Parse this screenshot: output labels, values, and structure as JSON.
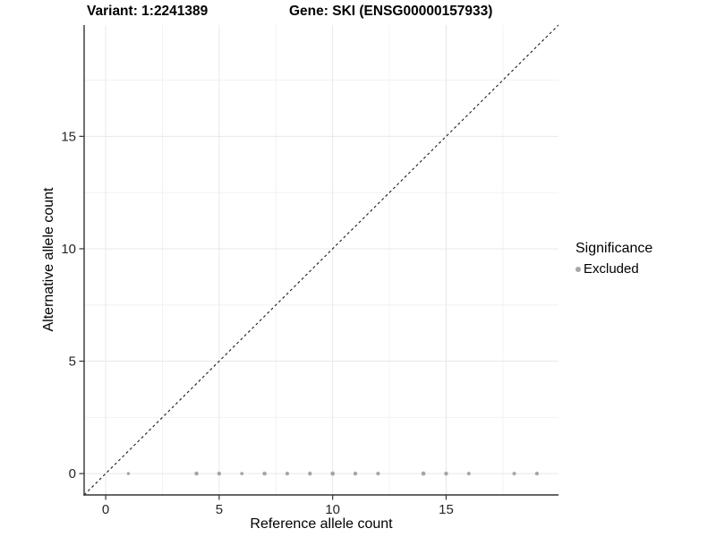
{
  "titles": {
    "variant": "Variant: 1:2241389",
    "gene": "Gene: SKI (ENSG00000157933)"
  },
  "chart_data": {
    "type": "scatter",
    "title": "Variant: 1:2241389   Gene: SKI (ENSG00000157933)",
    "xlabel": "Reference allele count",
    "ylabel": "Alternative allele count",
    "xlim": [
      -0.95,
      19.95
    ],
    "ylim": [
      -0.95,
      19.95
    ],
    "x_ticks": [
      0,
      5,
      10,
      15
    ],
    "y_ticks": [
      0,
      5,
      10,
      15
    ],
    "x_minor_ticks": [
      2.5,
      7.5,
      12.5,
      17.5
    ],
    "y_minor_ticks": [
      2.5,
      7.5,
      12.5,
      17.5
    ],
    "grid": true,
    "legend_position": "right",
    "reference_line": {
      "kind": "identity-y-equals-x",
      "style": "dashed",
      "color": "#1a1a1a"
    },
    "series": [
      {
        "name": "Excluded",
        "color": "#a6a6a6",
        "points": [
          {
            "x": 1,
            "y": 0,
            "r": 1.7
          },
          {
            "x": 4,
            "y": 0,
            "r": 2.3
          },
          {
            "x": 5,
            "y": 0,
            "r": 2.2
          },
          {
            "x": 6,
            "y": 0,
            "r": 1.9
          },
          {
            "x": 7,
            "y": 0,
            "r": 2.3
          },
          {
            "x": 8,
            "y": 0,
            "r": 2.1
          },
          {
            "x": 9,
            "y": 0,
            "r": 2.2
          },
          {
            "x": 10,
            "y": 0,
            "r": 2.4
          },
          {
            "x": 11,
            "y": 0,
            "r": 2.2
          },
          {
            "x": 12,
            "y": 0,
            "r": 2.1
          },
          {
            "x": 14,
            "y": 0,
            "r": 2.4
          },
          {
            "x": 15,
            "y": 0,
            "r": 2.2
          },
          {
            "x": 16,
            "y": 0,
            "r": 2.0
          },
          {
            "x": 18,
            "y": 0,
            "r": 2.0
          },
          {
            "x": 19,
            "y": 0,
            "r": 2.1
          }
        ]
      }
    ],
    "legend": {
      "title": "Significance",
      "items": [
        {
          "label": "Excluded",
          "color": "#a6a6a6"
        }
      ]
    }
  },
  "colors": {
    "background": "#ffffff",
    "major_grid": "#e8e8e8",
    "minor_grid": "#f2f2f2",
    "axis_line": "#333333",
    "tick_mark": "#333333",
    "tick_label": "#262626",
    "point": "#a6a6a6",
    "dashed_line": "#1a1a1a"
  }
}
